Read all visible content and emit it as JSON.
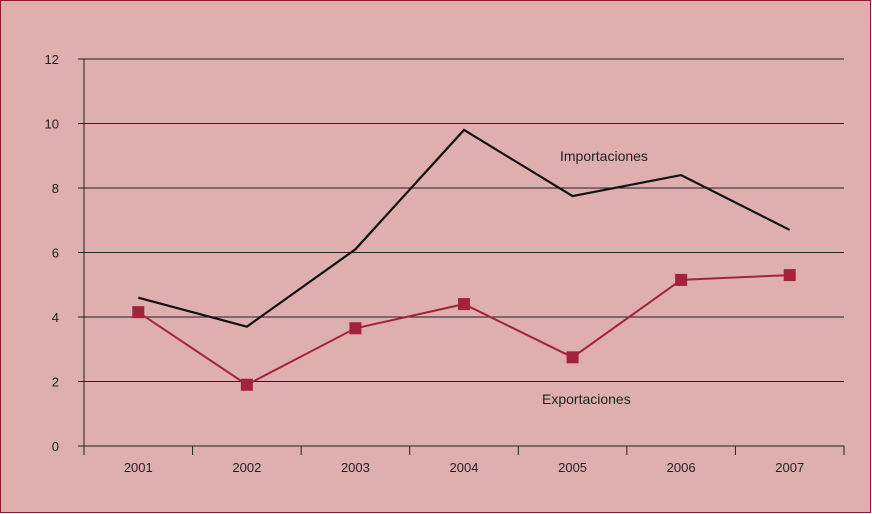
{
  "colors": {
    "background": "#dfaeae",
    "border": "#8e1a2c",
    "gridline": "#222222",
    "importaciones": "#111111",
    "exportaciones": "#a3233a"
  },
  "chart_data": {
    "type": "line",
    "title": "",
    "xlabel": "",
    "ylabel": "",
    "categories": [
      "2001",
      "2002",
      "2003",
      "2004",
      "2005",
      "2006",
      "2007"
    ],
    "ylim": [
      0,
      12
    ],
    "yticks": [
      0,
      2,
      4,
      6,
      8,
      10,
      12
    ],
    "grid": true,
    "series": [
      {
        "name": "Importaciones",
        "marker": "none",
        "values": [
          4.6,
          3.7,
          6.1,
          9.8,
          7.75,
          8.4,
          6.7
        ]
      },
      {
        "name": "Exportaciones",
        "marker": "square",
        "values": [
          4.15,
          1.9,
          3.65,
          4.4,
          2.75,
          5.15,
          5.3
        ]
      }
    ]
  }
}
